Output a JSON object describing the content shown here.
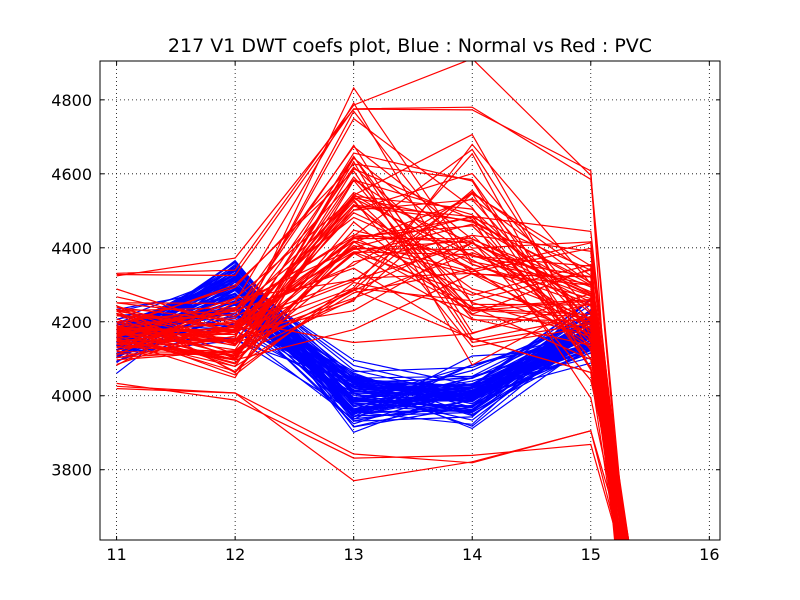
{
  "chart_data": {
    "type": "line",
    "title": "217 V1 DWT coefs plot, Blue : Normal vs Red : PVC",
    "xlabel": "",
    "ylabel": "",
    "xlim": [
      10.86,
      16.09
    ],
    "ylim": [
      3610,
      4905
    ],
    "x_ticks": [
      11,
      12,
      13,
      14,
      15,
      16
    ],
    "y_ticks": [
      3800,
      4000,
      4200,
      4400,
      4600,
      4800
    ],
    "x_tick_labels": [
      "11",
      "12",
      "13",
      "14",
      "15",
      "16"
    ],
    "y_tick_labels": [
      "3800",
      "4000",
      "4200",
      "4400",
      "4600",
      "4800"
    ],
    "grid": true,
    "legend": "none",
    "x": [
      11,
      12,
      13,
      14,
      15,
      15.2
    ],
    "series": [
      {
        "color": "#0000ff",
        "count": 90,
        "center": [
          4150,
          4260,
          4000,
          4010,
          4180
        ],
        "envelope_low": [
          4020,
          4080,
          3830,
          3880,
          4060
        ],
        "envelope_high": [
          4280,
          4470,
          4130,
          4170,
          4340
        ]
      },
      {
        "color": "#ff0000",
        "count": 80,
        "center": [
          4170,
          4160,
          4500,
          4350,
          4200,
          3610
        ],
        "envelope_low": [
          3990,
          3955,
          3705,
          3735,
          3850,
          3610
        ],
        "envelope_high": [
          4360,
          4390,
          4880,
          4920,
          4610,
          3610
        ]
      }
    ]
  }
}
